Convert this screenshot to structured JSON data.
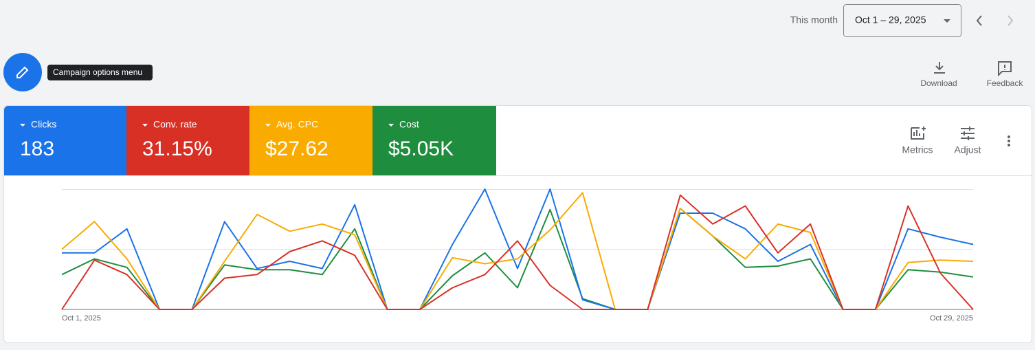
{
  "header": {
    "period_label": "This month",
    "date_range": "Oct 1 – 29, 2025"
  },
  "fab": {
    "tooltip": "Campaign options menu"
  },
  "toolbar": [
    "Download",
    "Feedback"
  ],
  "chart_tools": [
    "Metrics",
    "Adjust"
  ],
  "chart_data": {
    "type": "line",
    "categories": [
      "Oct 1, 2025",
      null,
      null,
      null,
      null,
      null,
      null,
      null,
      null,
      null,
      null,
      null,
      null,
      null,
      null,
      null,
      null,
      null,
      null,
      null,
      null,
      null,
      null,
      null,
      null,
      null,
      null,
      null,
      "Oct 29, 2025"
    ],
    "ylim": [
      0,
      100
    ],
    "series": [
      {
        "name": "Clicks",
        "total": "183",
        "color": "#1a73e8",
        "values": [
          47,
          47,
          67,
          0,
          0,
          73,
          34,
          40,
          34,
          87,
          0,
          0,
          54,
          100,
          34,
          100,
          8,
          0,
          0,
          80,
          80,
          67,
          40,
          54,
          0,
          0,
          67,
          60,
          54
        ]
      },
      {
        "name": "Conv. rate",
        "total": "31.15%",
        "color": "#d93025",
        "values": [
          0,
          41,
          29,
          0,
          0,
          26,
          29,
          48,
          57,
          45,
          0,
          0,
          18,
          29,
          57,
          20,
          0,
          0,
          0,
          95,
          71,
          86,
          47,
          71,
          0,
          0,
          86,
          30,
          0
        ]
      },
      {
        "name": "Avg. CPC",
        "total": "$27.62",
        "color": "#f9ab00",
        "values": [
          50,
          73,
          42,
          0,
          0,
          40,
          79,
          65,
          71,
          62,
          0,
          0,
          43,
          38,
          42,
          66,
          97,
          0,
          0,
          84,
          61,
          42,
          71,
          64,
          0,
          0,
          39,
          41,
          40
        ]
      },
      {
        "name": "Cost",
        "total": "$5.05K",
        "color": "#1e8e3e",
        "values": [
          29,
          42,
          35,
          0,
          0,
          37,
          33,
          33,
          29,
          67,
          0,
          0,
          28,
          47,
          18,
          83,
          9,
          0,
          0,
          84,
          61,
          35,
          36,
          42,
          0,
          0,
          33,
          31,
          27
        ]
      }
    ]
  }
}
